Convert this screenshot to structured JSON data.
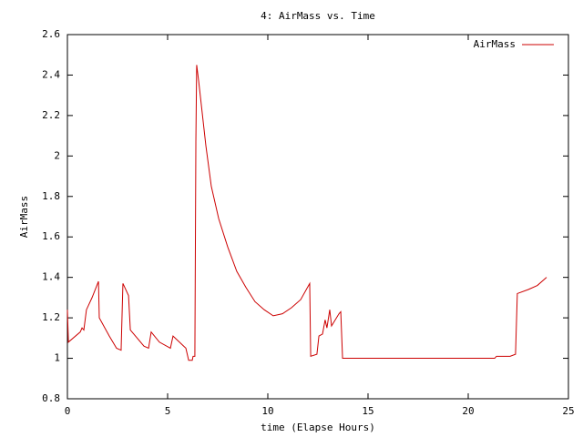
{
  "chart_data": {
    "type": "line",
    "title": "4: AirMass vs. Time",
    "x_label": "time (Elapse Hours)",
    "y_label": "AirMass",
    "x": [
      0,
      0.05,
      0.64,
      0.73,
      0.82,
      0.95,
      1.23,
      1.55,
      1.59,
      2.09,
      2.45,
      2.68,
      2.77,
      3.05,
      3.14,
      3.82,
      4.05,
      4.18,
      4.59,
      5.14,
      5.27,
      5.91,
      6.05,
      6.23,
      6.27,
      6.36,
      6.41,
      6.45,
      6.55,
      6.73,
      6.91,
      7.18,
      7.55,
      8.0,
      8.45,
      8.91,
      9.36,
      9.82,
      10.27,
      10.73,
      11.18,
      11.64,
      12.09,
      12.14,
      12.45,
      12.55,
      12.73,
      12.86,
      12.95,
      13.09,
      13.18,
      13.55,
      13.64,
      13.73,
      21.32,
      21.41,
      21.64,
      22.09,
      22.36,
      22.45,
      23.0,
      23.45,
      23.91
    ],
    "series": [
      {
        "name": "AirMass",
        "color": "#cc0000",
        "values": [
          1.24,
          1.08,
          1.13,
          1.15,
          1.14,
          1.24,
          1.3,
          1.38,
          1.2,
          1.11,
          1.05,
          1.04,
          1.37,
          1.31,
          1.14,
          1.06,
          1.05,
          1.13,
          1.08,
          1.05,
          1.11,
          1.05,
          0.99,
          0.99,
          1.01,
          1.01,
          2.07,
          2.45,
          2.37,
          2.21,
          2.05,
          1.85,
          1.69,
          1.55,
          1.43,
          1.35,
          1.28,
          1.24,
          1.21,
          1.22,
          1.25,
          1.29,
          1.37,
          1.01,
          1.02,
          1.11,
          1.12,
          1.19,
          1.15,
          1.24,
          1.16,
          1.22,
          1.23,
          1.0,
          1.0,
          1.01,
          1.01,
          1.01,
          1.02,
          1.32,
          1.34,
          1.36,
          1.4
        ]
      }
    ],
    "xlim": [
      0,
      25
    ],
    "xticks": [
      0,
      5,
      10,
      15,
      20,
      25
    ],
    "ylim": [
      0.8,
      2.6
    ],
    "yticks": [
      0.8,
      1,
      1.2,
      1.4,
      1.6,
      1.8,
      2,
      2.2,
      2.4,
      2.6
    ],
    "grid": false,
    "legend": "top-right"
  }
}
